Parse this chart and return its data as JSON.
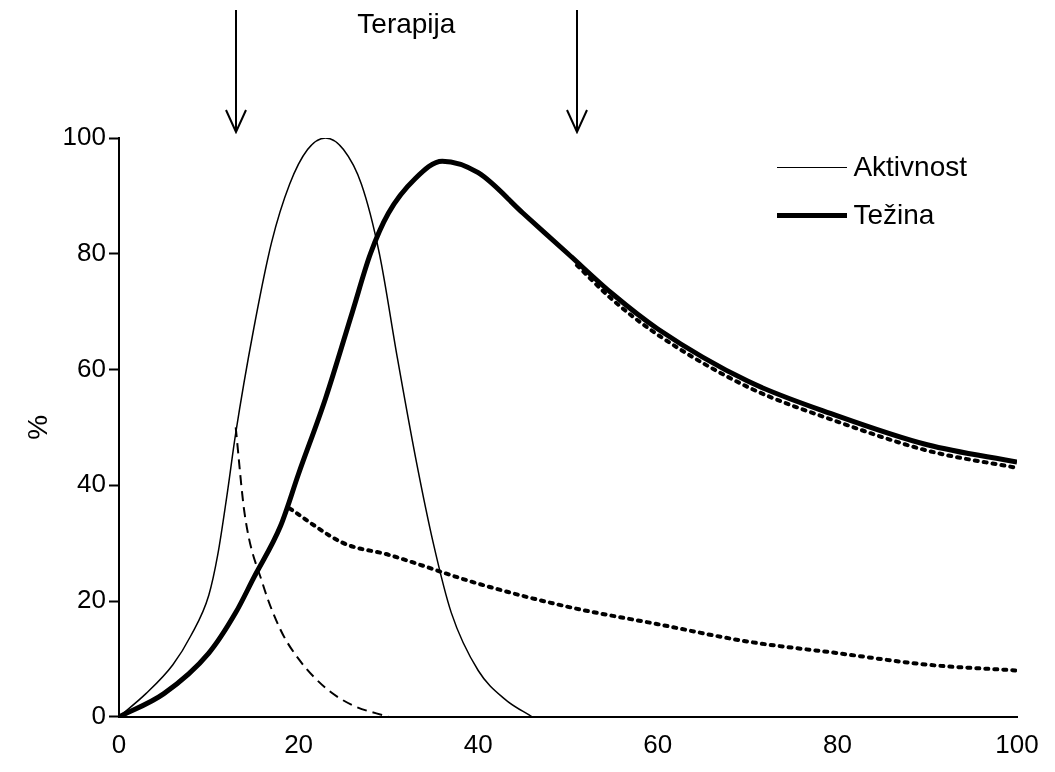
{
  "chart_data": {
    "type": "line",
    "ylabel": "%",
    "annotations": [
      "Terapija"
    ],
    "xlim": [
      0,
      100
    ],
    "ylim": [
      0,
      100
    ],
    "xticks": [
      0,
      20,
      40,
      60,
      80,
      100
    ],
    "yticks": [
      0,
      20,
      40,
      60,
      80,
      100
    ],
    "grid": false,
    "legend": "top right",
    "marker": "none",
    "series": [
      {
        "name": "Aktivnost",
        "color": "#000000",
        "line_style": "solid",
        "x": [
          0,
          3,
          6,
          8,
          10,
          11,
          12,
          13,
          15,
          17,
          19,
          21,
          23,
          25,
          27,
          29,
          31,
          33,
          35,
          37,
          40,
          43,
          46
        ],
        "values": [
          0,
          4,
          9,
          14,
          21,
          28,
          38,
          49,
          67,
          82,
          92,
          98,
          100,
          98,
          92,
          80,
          62,
          45,
          30,
          18,
          8,
          3,
          0
        ]
      },
      {
        "name": "Težina",
        "color": "#000000",
        "line_style": "solid",
        "x": [
          0,
          5,
          10,
          13,
          15,
          18,
          20,
          23,
          26,
          28,
          30,
          33,
          36,
          40,
          45,
          50,
          55,
          60,
          70,
          80,
          90,
          100
        ],
        "values": [
          0,
          4,
          11,
          18,
          24,
          33,
          42,
          55,
          70,
          80,
          87,
          93,
          96,
          94,
          87,
          80,
          73,
          67,
          58,
          52,
          47,
          44
        ]
      },
      {
        "color": "#000000",
        "line_style": "dashed",
        "x": [
          13,
          14,
          16,
          18,
          20,
          23,
          26,
          30
        ],
        "values": [
          50,
          35,
          23,
          15,
          10,
          5,
          2,
          0
        ]
      },
      {
        "color": "#000000",
        "line_style": "dotted",
        "x": [
          19,
          25,
          30,
          40,
          50,
          60,
          70,
          80,
          90,
          100
        ],
        "values": [
          36,
          30,
          28,
          23,
          19,
          16,
          13,
          11,
          9,
          8
        ]
      },
      {
        "color": "#000000",
        "line_style": "dotted",
        "x": [
          51,
          55,
          60,
          70,
          80,
          90,
          100
        ],
        "values": [
          78,
          72,
          66,
          57,
          51,
          46,
          43
        ]
      }
    ]
  }
}
